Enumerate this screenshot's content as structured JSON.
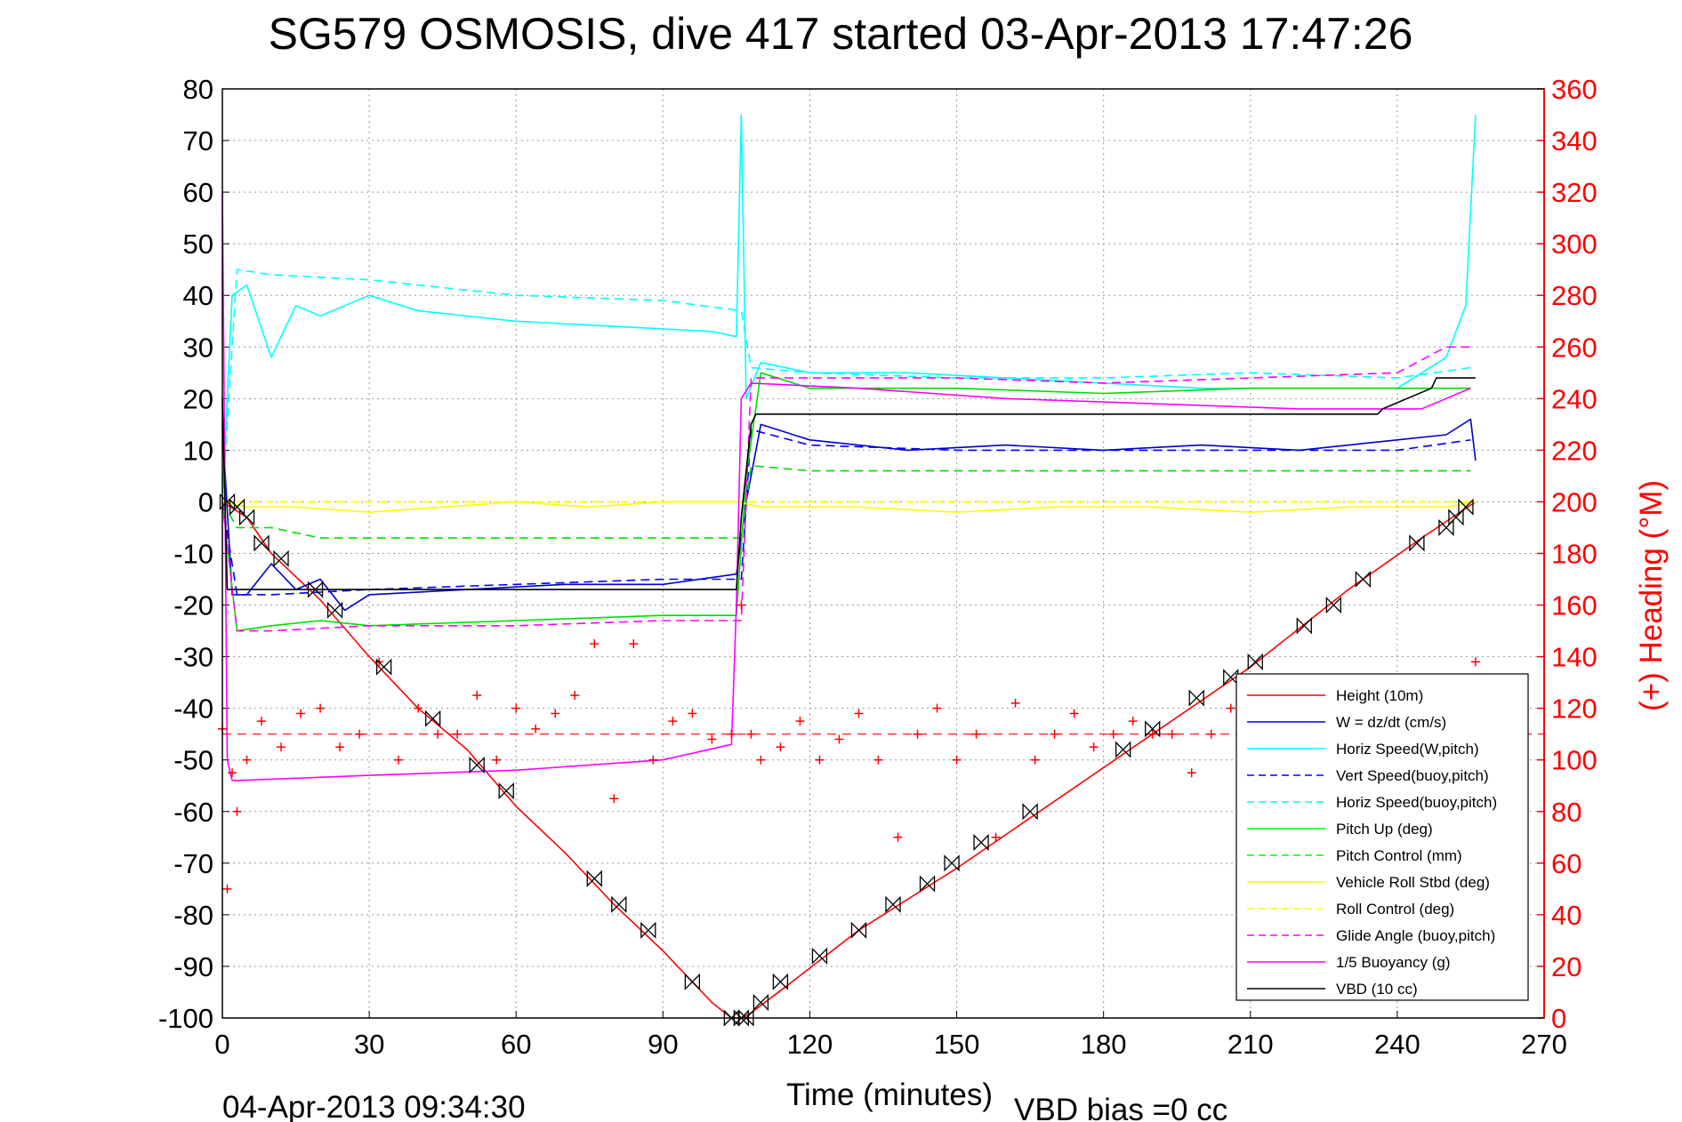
{
  "chart_data": {
    "type": "line",
    "title": "SG579 OSMOSIS, dive 417 started 03-Apr-2013 17:47:26",
    "xlabel": "Time (minutes)",
    "ylabel_right": "(+) Heading (°M)",
    "footer_left": "04-Apr-2013 09:34:30",
    "footer_right": "VBD bias =0 cc",
    "xlim": [
      0,
      270
    ],
    "ylim": [
      -100,
      80
    ],
    "ylim_right": [
      0,
      360
    ],
    "x_ticks": [
      "0",
      "30",
      "60",
      "90",
      "120",
      "150",
      "180",
      "210",
      "240",
      "270"
    ],
    "y_ticks": [
      "80",
      "70",
      "60",
      "50",
      "40",
      "30",
      "20",
      "10",
      "0",
      "-10",
      "-20",
      "-30",
      "-40",
      "-50",
      "-60",
      "-70",
      "-80",
      "-90",
      "-100"
    ],
    "y2_ticks": [
      "360",
      "340",
      "320",
      "300",
      "280",
      "260",
      "240",
      "220",
      "200",
      "180",
      "160",
      "140",
      "120",
      "100",
      "80",
      "60",
      "40",
      "20",
      "0"
    ],
    "grid": true,
    "legend_position": "bottom-right",
    "series": [
      {
        "name": "Height (10m)",
        "color": "#ff0000",
        "style": "solid",
        "x": [
          0,
          5,
          10,
          20,
          30,
          40,
          50,
          60,
          70,
          80,
          90,
          100,
          104,
          106,
          108,
          115,
          130,
          150,
          170,
          190,
          210,
          230,
          245,
          256
        ],
        "y": [
          0,
          -3,
          -10,
          -19,
          -30,
          -40,
          -48,
          -59,
          -68,
          -78,
          -87,
          -97,
          -100,
          -100,
          -99,
          -94,
          -83,
          -71,
          -58,
          -45,
          -32,
          -17,
          -7,
          0
        ]
      },
      {
        "name": "W = dz/dt (cm/s)",
        "color": "#0000cc",
        "style": "solid",
        "x": [
          0,
          2,
          5,
          10,
          15,
          20,
          25,
          30,
          50,
          70,
          90,
          105,
          107,
          110,
          120,
          140,
          160,
          180,
          200,
          220,
          240,
          250,
          255,
          256
        ],
        "y": [
          15,
          -18,
          -18,
          -12,
          -17,
          -15,
          -21,
          -18,
          -17,
          -16,
          -16,
          -14,
          0,
          15,
          12,
          10,
          11,
          10,
          11,
          10,
          12,
          13,
          16,
          8
        ]
      },
      {
        "name": "Horiz Speed(W,pitch)",
        "color": "#00ffff",
        "style": "solid",
        "x": [
          0,
          2,
          5,
          10,
          15,
          20,
          25,
          30,
          40,
          60,
          80,
          100,
          105,
          106,
          107,
          110,
          120,
          140,
          160,
          180,
          200,
          220,
          240,
          250,
          254,
          256
        ],
        "y": [
          0,
          40,
          42,
          28,
          38,
          36,
          38,
          40,
          37,
          35,
          34,
          33,
          32,
          75,
          20,
          27,
          25,
          25,
          24,
          23,
          22,
          22,
          22,
          28,
          38,
          75
        ]
      },
      {
        "name": "Vert Speed(buoy,pitch)",
        "color": "#0000ff",
        "style": "dashed",
        "x": [
          0,
          3,
          10,
          30,
          60,
          90,
          106,
          108,
          120,
          150,
          180,
          210,
          240,
          255
        ],
        "y": [
          0,
          -18,
          -18,
          -17,
          -16,
          -15,
          -15,
          14,
          11,
          10,
          10,
          10,
          10,
          12
        ]
      },
      {
        "name": "Horiz Speed(buoy,pitch)",
        "color": "#00ffff",
        "style": "dashed",
        "x": [
          0,
          3,
          10,
          30,
          60,
          90,
          106,
          108,
          120,
          150,
          180,
          210,
          240,
          255
        ],
        "y": [
          0,
          45,
          44,
          43,
          40,
          39,
          37,
          26,
          25,
          24,
          24,
          25,
          24,
          26
        ]
      },
      {
        "name": "Pitch Up (deg)",
        "color": "#00dd00",
        "style": "solid",
        "x": [
          0,
          3,
          10,
          20,
          30,
          60,
          90,
          105,
          107,
          110,
          120,
          150,
          180,
          210,
          240,
          255
        ],
        "y": [
          0,
          -25,
          -24,
          -23,
          -24,
          -23,
          -22,
          -22,
          5,
          25,
          22,
          22,
          21,
          22,
          22,
          22
        ]
      },
      {
        "name": "Pitch Control (mm)",
        "color": "#00dd00",
        "style": "dashed",
        "x": [
          0,
          3,
          10,
          20,
          106,
          108,
          120,
          180,
          240,
          255
        ],
        "y": [
          0,
          -5,
          -5,
          -7,
          -7,
          7,
          6,
          6,
          6,
          6
        ]
      },
      {
        "name": "Vehicle Roll Stbd (deg)",
        "color": "#ffff00",
        "style": "solid",
        "x": [
          0,
          5,
          15,
          30,
          45,
          60,
          75,
          90,
          105,
          110,
          130,
          150,
          170,
          190,
          210,
          230,
          250,
          256
        ],
        "y": [
          0,
          -1,
          -1,
          -2,
          -1,
          0,
          -1,
          0,
          0,
          -1,
          -1,
          -2,
          -1,
          -1,
          -2,
          -1,
          -1,
          0
        ]
      },
      {
        "name": "Roll Control (deg)",
        "color": "#ffff00",
        "style": "dashed",
        "x": [
          0,
          10,
          60,
          106,
          108,
          160,
          220,
          256
        ],
        "y": [
          0,
          0,
          0,
          0,
          0,
          0,
          0,
          0
        ]
      },
      {
        "name": "Glide Angle (buoy,pitch)",
        "color": "#ff00ff",
        "style": "dashed",
        "x": [
          0,
          3,
          10,
          30,
          60,
          90,
          106,
          108,
          120,
          150,
          180,
          210,
          240,
          250,
          255
        ],
        "y": [
          0,
          -25,
          -25,
          -24,
          -24,
          -23,
          -23,
          24,
          24,
          24,
          23,
          24,
          25,
          30,
          30
        ]
      },
      {
        "name": "1/5 Buoyancy (g)",
        "color": "#ff00ff",
        "style": "solid",
        "x": [
          0,
          1,
          2,
          3,
          30,
          60,
          90,
          104,
          105,
          106,
          108,
          130,
          160,
          190,
          220,
          240,
          245,
          250,
          255
        ],
        "y": [
          60,
          -50,
          -54,
          -54,
          -53,
          -52,
          -50,
          -47,
          -20,
          20,
          23,
          22,
          20,
          19,
          18,
          18,
          18,
          20,
          22
        ]
      },
      {
        "name": "VBD (10 cc)",
        "color": "#000000",
        "style": "solid",
        "x": [
          0,
          1,
          2,
          105,
          106,
          108,
          109,
          236,
          237,
          247,
          248,
          256
        ],
        "y": [
          20,
          -17,
          -17,
          -17,
          -3,
          15,
          17,
          17,
          18,
          22,
          24,
          24
        ]
      }
    ],
    "heading_series": {
      "name": "(+) Heading (°M)",
      "color": "#ff0000",
      "marker": "+",
      "mean": 110,
      "x": [
        0,
        1,
        2,
        3,
        5,
        8,
        12,
        16,
        20,
        24,
        28,
        32,
        36,
        40,
        44,
        48,
        52,
        56,
        60,
        64,
        68,
        72,
        76,
        80,
        84,
        88,
        92,
        96,
        100,
        104,
        106,
        108,
        110,
        114,
        118,
        122,
        126,
        130,
        134,
        138,
        142,
        146,
        150,
        154,
        158,
        162,
        166,
        170,
        174,
        178,
        182,
        186,
        190,
        194,
        198,
        202,
        206,
        210,
        214,
        218,
        222,
        226,
        230,
        234,
        238,
        242,
        246,
        250,
        254,
        256
      ],
      "y": [
        112,
        50,
        95,
        80,
        100,
        115,
        105,
        118,
        120,
        105,
        110,
        138,
        100,
        120,
        110,
        110,
        125,
        100,
        120,
        112,
        118,
        125,
        145,
        85,
        145,
        100,
        115,
        118,
        108,
        110,
        160,
        110,
        100,
        105,
        115,
        100,
        108,
        118,
        100,
        70,
        110,
        120,
        100,
        110,
        70,
        122,
        100,
        110,
        118,
        105,
        110,
        115,
        110,
        110,
        95,
        110,
        120,
        100,
        110,
        115,
        105,
        110,
        115,
        100,
        108,
        110,
        112,
        115,
        110,
        138
      ]
    },
    "vbd_markers": {
      "x": [
        1,
        3,
        5,
        8,
        12,
        19,
        23,
        33,
        43,
        52,
        58,
        76,
        81,
        87,
        96,
        104,
        106,
        107,
        110,
        114,
        122,
        130,
        137,
        144,
        149,
        155,
        165,
        184,
        190,
        199,
        206,
        211,
        221,
        227,
        233,
        244,
        250,
        252,
        254
      ],
      "y": [
        0,
        -1,
        -3,
        -8,
        -11,
        -17,
        -21,
        -32,
        -42,
        -51,
        -56,
        -73,
        -78,
        -83,
        -93,
        -100,
        -100,
        -100,
        -97,
        -93,
        -88,
        -83,
        -78,
        -74,
        -70,
        -66,
        -60,
        -48,
        -44,
        -38,
        -34,
        -31,
        -24,
        -20,
        -15,
        -8,
        -5,
        -3,
        -1
      ]
    }
  },
  "legend": [
    {
      "label": "Height (10m)",
      "color": "#ff0000",
      "style": "solid"
    },
    {
      "label": "W = dz/dt (cm/s)",
      "color": "#0000ff",
      "style": "solid"
    },
    {
      "label": "Horiz Speed(W,pitch)",
      "color": "#00ffff",
      "style": "solid"
    },
    {
      "label": "Vert Speed(buoy,pitch)",
      "color": "#0000ff",
      "style": "dashed"
    },
    {
      "label": "Horiz Speed(buoy,pitch)",
      "color": "#00ffff",
      "style": "dashed"
    },
    {
      "label": "Pitch Up (deg)",
      "color": "#00ff00",
      "style": "solid"
    },
    {
      "label": "Pitch Control (mm)",
      "color": "#00ff00",
      "style": "dashed"
    },
    {
      "label": "Vehicle Roll Stbd (deg)",
      "color": "#ffff00",
      "style": "solid"
    },
    {
      "label": "Roll Control (deg)",
      "color": "#ffff00",
      "style": "dashed"
    },
    {
      "label": "Glide Angle (buoy,pitch)",
      "color": "#ff00ff",
      "style": "dashed"
    },
    {
      "label": "1/5 Buoyancy (g)",
      "color": "#ff00ff",
      "style": "solid"
    },
    {
      "label": "VBD (10 cc)",
      "color": "#000000",
      "style": "solid"
    }
  ]
}
